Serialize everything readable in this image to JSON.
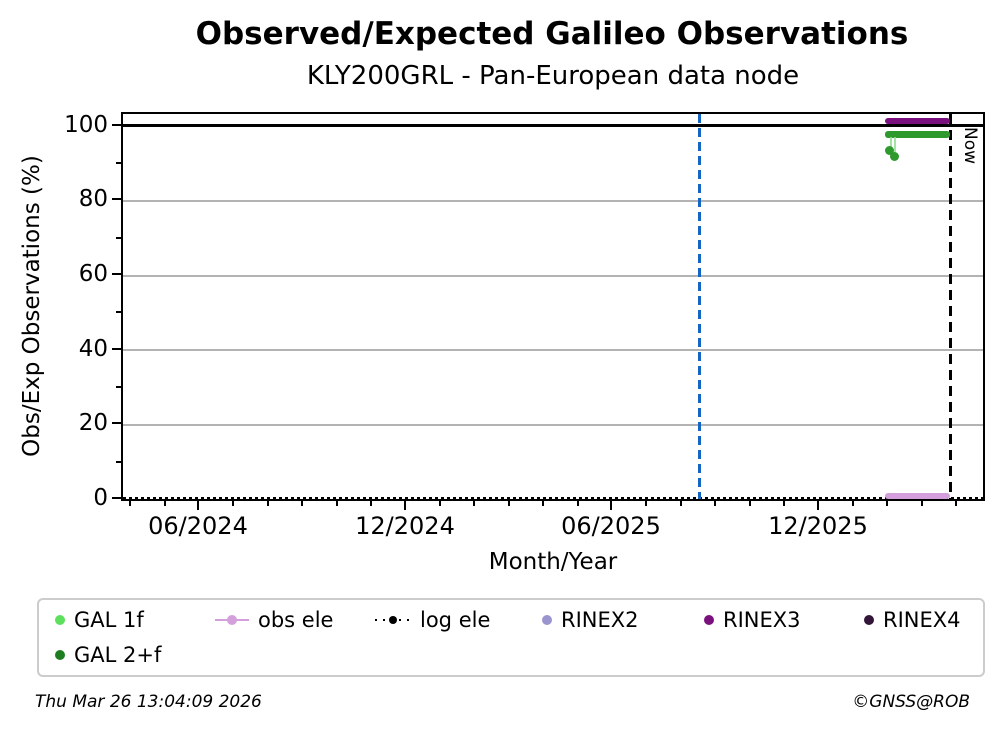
{
  "title": "Observed/Expected Galileo Observations",
  "subtitle": "KLY200GRL - Pan-European data node",
  "axes": {
    "x": {
      "label": "Month/Year",
      "tick_labels": [
        "06/2024",
        "12/2024",
        "06/2025",
        "12/2025"
      ]
    },
    "y": {
      "label": "Obs/Exp Observations (%)",
      "tick_labels": [
        "0",
        "20",
        "40",
        "60",
        "80",
        "100"
      ]
    }
  },
  "annotations": {
    "now_label": "Now"
  },
  "legend": [
    {
      "label": "GAL 1f",
      "color": "#5de05d",
      "marker": "dot"
    },
    {
      "label": "obs ele",
      "color": "#d3a0dc",
      "marker": "line-with-dot"
    },
    {
      "label": "log ele",
      "color": "#000000",
      "marker": "dotted-line-with-dot"
    },
    {
      "label": "RINEX2",
      "color": "#9a94cf",
      "marker": "dot"
    },
    {
      "label": "RINEX3",
      "color": "#7a0f7e",
      "marker": "dot"
    },
    {
      "label": "RINEX4",
      "color": "#321539",
      "marker": "dot"
    },
    {
      "label": "GAL 2+f",
      "color": "#1e7d1e",
      "marker": "dot"
    }
  ],
  "footer": {
    "left": "Thu Mar 26 13:04:09 2026",
    "right": "©GNSS@ROB"
  },
  "chart_data": {
    "type": "scatter",
    "title": "Observed/Expected Galileo Observations",
    "subtitle": "KLY200GRL - Pan-European data node",
    "xlabel": "Month/Year",
    "ylabel": "Obs/Exp Observations (%)",
    "x_range_approx": [
      "2024-03-20",
      "2026-04-30"
    ],
    "ylim": [
      0,
      103.5
    ],
    "x_tick_labels": [
      "06/2024",
      "12/2024",
      "06/2025",
      "12/2025"
    ],
    "y_ticks": [
      0,
      20,
      40,
      60,
      80,
      100
    ],
    "grid": {
      "horizontal": [
        20,
        40,
        60,
        80
      ],
      "color": "#b3b3b3"
    },
    "legend_position": "below axes, two rows",
    "series": [
      {
        "name": "GAL 1f",
        "color": "#5de05d",
        "points": [],
        "note": "in legend, no visible points (overplotted)"
      },
      {
        "name": "GAL 2+f",
        "color": "#2e9a2e",
        "segment": {
          "start": "2026-01-22",
          "end": "2026-03-25",
          "value_pct": 98
        },
        "dip": {
          "date": "2026-01-27",
          "value_pct": 92
        }
      },
      {
        "name": "obs ele",
        "color": "#d3a0dc",
        "segment": {
          "start": "2026-01-22",
          "end": "2026-03-25",
          "value_pct": 0.5
        }
      },
      {
        "name": "log ele",
        "color": "#000000",
        "style": "dotted",
        "segment": {
          "start": "2024-03-20",
          "end": "2026-04-30",
          "value_pct": 0
        }
      },
      {
        "name": "RINEX2",
        "color": "#9a94cf",
        "points": [],
        "note": "in legend, no visible points"
      },
      {
        "name": "RINEX3",
        "color": "#7a0f7e",
        "segment": {
          "start": "2026-01-22",
          "end": "2026-03-25",
          "value_pct": 101.5
        }
      },
      {
        "name": "RINEX4",
        "color": "#321539",
        "points": [],
        "note": "in legend, no visible points"
      }
    ],
    "reference_lines": [
      {
        "type": "hline",
        "value_pct": 100,
        "style": "solid",
        "color": "#000000"
      },
      {
        "type": "vline",
        "date_approx": "2025-08-18",
        "style": "dashed",
        "color": "#1565c5"
      },
      {
        "type": "vline",
        "date_approx": "2026-03-26",
        "style": "dashed",
        "color": "#000000",
        "label": "Now"
      }
    ]
  }
}
